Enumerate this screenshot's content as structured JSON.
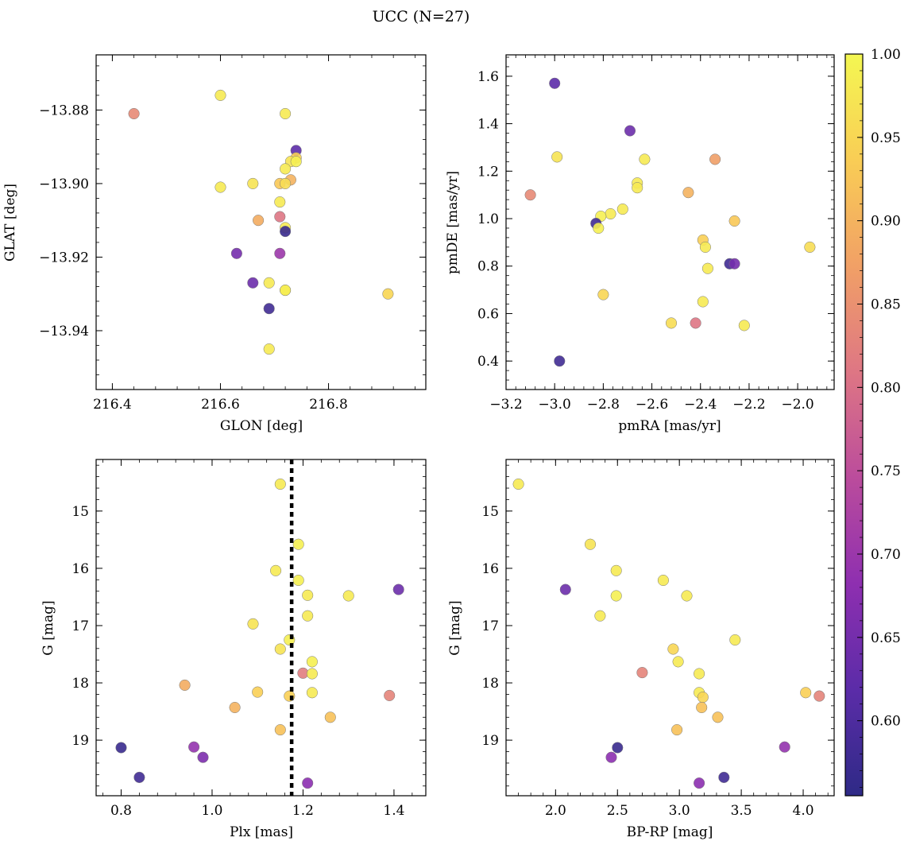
{
  "figure": {
    "title": "UCC (N=27)"
  },
  "colormap": {
    "name": "plasma",
    "ticks": [
      "0.60",
      "0.65",
      "0.70",
      "0.75",
      "0.80",
      "0.85",
      "0.90",
      "0.95",
      "1.00"
    ],
    "tick_values": [
      0.6,
      0.65,
      0.7,
      0.75,
      0.8,
      0.85,
      0.9,
      0.95,
      1.0
    ],
    "range": [
      0.555,
      1.0
    ],
    "stops": [
      "#2e2a86",
      "#5b2ca8",
      "#8e2fb0",
      "#bb4c9c",
      "#de7684",
      "#f1a066",
      "#f9cd55",
      "#f4f752"
    ]
  },
  "chart_data": [
    {
      "type": "scatter",
      "id": "sky",
      "title": "",
      "xlabel": "GLON [deg]",
      "ylabel": "GLAT [deg]",
      "xlim": [
        216.37,
        216.98
      ],
      "ylim": [
        -13.956,
        -13.865
      ],
      "xticks": [
        "216.4",
        "216.6",
        "216.8"
      ],
      "xtick_values": [
        216.4,
        216.6,
        216.8
      ],
      "yticks": [
        "−13.88",
        "−13.90",
        "−13.92",
        "−13.94"
      ],
      "ytick_values": [
        -13.88,
        -13.9,
        -13.92,
        -13.94
      ],
      "x": [
        216.44,
        216.6,
        216.72,
        216.74,
        216.74,
        216.73,
        216.72,
        216.73,
        216.71,
        216.72,
        216.6,
        216.66,
        216.71,
        216.67,
        216.71,
        216.72,
        216.72,
        216.63,
        216.71,
        216.66,
        216.69,
        216.72,
        216.91,
        216.69,
        216.69,
        216.72,
        216.74
      ],
      "y": [
        -13.881,
        -13.876,
        -13.881,
        -13.891,
        -13.893,
        -13.894,
        -13.896,
        -13.899,
        -13.9,
        -13.9,
        -13.901,
        -13.9,
        -13.905,
        -13.91,
        -13.909,
        -13.912,
        -13.913,
        -13.919,
        -13.919,
        -13.927,
        -13.927,
        -13.929,
        -13.93,
        -13.934,
        -13.945,
        -13.929,
        -13.894
      ],
      "c": [
        0.84,
        0.98,
        0.98,
        0.62,
        0.94,
        0.97,
        0.98,
        0.9,
        0.93,
        0.96,
        0.98,
        0.97,
        0.98,
        0.89,
        0.81,
        0.98,
        0.57,
        0.65,
        0.7,
        0.64,
        0.98,
        0.95,
        0.95,
        0.58,
        0.98,
        0.99,
        0.99
      ],
      "dashed_x": null
    },
    {
      "type": "scatter",
      "id": "pm",
      "title": "",
      "xlabel": "pmRA [mas/yr]",
      "ylabel": "pmDE [mas/yr]",
      "xlim": [
        -3.2,
        -1.85
      ],
      "ylim": [
        0.28,
        1.69
      ],
      "xticks": [
        "−3.2",
        "−3.0",
        "−2.8",
        "−2.6",
        "−2.4",
        "−2.2",
        "−2.0"
      ],
      "xtick_values": [
        -3.2,
        -3.0,
        -2.8,
        -2.6,
        -2.4,
        -2.2,
        -2.0
      ],
      "yticks": [
        "0.4",
        "0.6",
        "0.8",
        "1.0",
        "1.2",
        "1.4",
        "1.6"
      ],
      "ytick_values": [
        0.4,
        0.6,
        0.8,
        1.0,
        1.2,
        1.4,
        1.6
      ],
      "x": [
        -3.0,
        -2.69,
        -2.99,
        -2.63,
        -2.34,
        -2.66,
        -2.66,
        -3.1,
        -2.45,
        -2.72,
        -2.77,
        -2.81,
        -2.83,
        -2.82,
        -2.26,
        -2.39,
        -2.38,
        -2.28,
        -2.26,
        -1.95,
        -2.37,
        -2.8,
        -2.39,
        -2.52,
        -2.42,
        -2.22,
        -2.98
      ],
      "y": [
        1.57,
        1.37,
        1.26,
        1.25,
        1.25,
        1.15,
        1.13,
        1.1,
        1.11,
        1.04,
        1.02,
        1.01,
        0.98,
        0.96,
        0.99,
        0.91,
        0.88,
        0.81,
        0.81,
        0.88,
        0.79,
        0.68,
        0.65,
        0.56,
        0.56,
        0.55,
        0.4
      ],
      "c": [
        0.62,
        0.64,
        0.97,
        0.98,
        0.87,
        0.98,
        0.98,
        0.84,
        0.9,
        0.98,
        0.98,
        0.99,
        0.58,
        0.99,
        0.93,
        0.94,
        0.98,
        0.58,
        0.65,
        0.96,
        0.98,
        0.95,
        0.98,
        0.96,
        0.81,
        0.98,
        0.58
      ],
      "dashed_x": null
    },
    {
      "type": "scatter",
      "id": "plx",
      "title": "",
      "xlabel": "Plx [mas]",
      "ylabel": "G [mag]",
      "xlim": [
        0.745,
        1.47
      ],
      "ylim": [
        19.97,
        14.1
      ],
      "xticks": [
        "0.8",
        "1.0",
        "1.2",
        "1.4"
      ],
      "xtick_values": [
        0.8,
        1.0,
        1.2,
        1.4
      ],
      "yticks": [
        "15",
        "16",
        "17",
        "18",
        "19"
      ],
      "ytick_values": [
        15,
        16,
        17,
        18,
        19
      ],
      "x": [
        1.15,
        1.19,
        1.14,
        1.19,
        1.21,
        1.3,
        1.41,
        1.21,
        1.09,
        1.17,
        1.15,
        1.22,
        1.2,
        1.22,
        0.94,
        1.1,
        1.17,
        1.22,
        1.39,
        1.05,
        1.26,
        1.15,
        0.8,
        0.96,
        0.98,
        0.84,
        1.21
      ],
      "y": [
        14.53,
        15.58,
        16.04,
        16.21,
        16.47,
        16.48,
        16.37,
        16.83,
        16.97,
        17.25,
        17.41,
        17.63,
        17.83,
        17.84,
        18.04,
        18.16,
        18.23,
        18.17,
        18.22,
        18.43,
        18.6,
        18.82,
        19.13,
        19.12,
        19.3,
        19.65,
        19.75
      ],
      "c": [
        0.98,
        0.99,
        0.98,
        0.99,
        0.98,
        0.98,
        0.64,
        0.98,
        0.97,
        0.99,
        0.97,
        0.99,
        0.82,
        0.98,
        0.89,
        0.94,
        0.94,
        0.98,
        0.83,
        0.9,
        0.92,
        0.92,
        0.57,
        0.69,
        0.66,
        0.58,
        0.68
      ],
      "dashed_x": 1.175
    },
    {
      "type": "scatter",
      "id": "cmd",
      "title": "",
      "xlabel": "BP-RP [mag]",
      "ylabel": "G [mag]",
      "xlim": [
        1.6,
        4.25
      ],
      "ylim": [
        19.97,
        14.1
      ],
      "xticks": [
        "2.0",
        "2.5",
        "3.0",
        "3.5",
        "4.0"
      ],
      "xtick_values": [
        2.0,
        2.5,
        3.0,
        3.5,
        4.0
      ],
      "yticks": [
        "15",
        "16",
        "17",
        "18",
        "19"
      ],
      "ytick_values": [
        15,
        16,
        17,
        18,
        19
      ],
      "x": [
        1.7,
        2.28,
        2.49,
        2.08,
        2.49,
        2.36,
        2.87,
        3.06,
        3.45,
        2.95,
        2.99,
        2.7,
        3.16,
        3.16,
        3.19,
        3.18,
        4.02,
        4.13,
        2.98,
        3.31,
        3.85,
        2.5,
        2.45,
        3.16,
        3.36
      ],
      "y": [
        14.53,
        15.58,
        16.04,
        16.37,
        16.48,
        16.83,
        16.21,
        16.48,
        17.25,
        17.41,
        17.63,
        17.82,
        17.84,
        18.17,
        18.25,
        18.43,
        18.17,
        18.23,
        18.82,
        18.6,
        19.12,
        19.13,
        19.3,
        19.75,
        19.65
      ],
      "c": [
        0.98,
        0.97,
        0.98,
        0.64,
        0.99,
        0.98,
        0.98,
        0.98,
        0.98,
        0.95,
        0.98,
        0.83,
        0.98,
        0.98,
        0.95,
        0.92,
        0.94,
        0.83,
        0.92,
        0.92,
        0.69,
        0.57,
        0.68,
        0.68,
        0.58
      ],
      "dashed_x": null
    }
  ]
}
